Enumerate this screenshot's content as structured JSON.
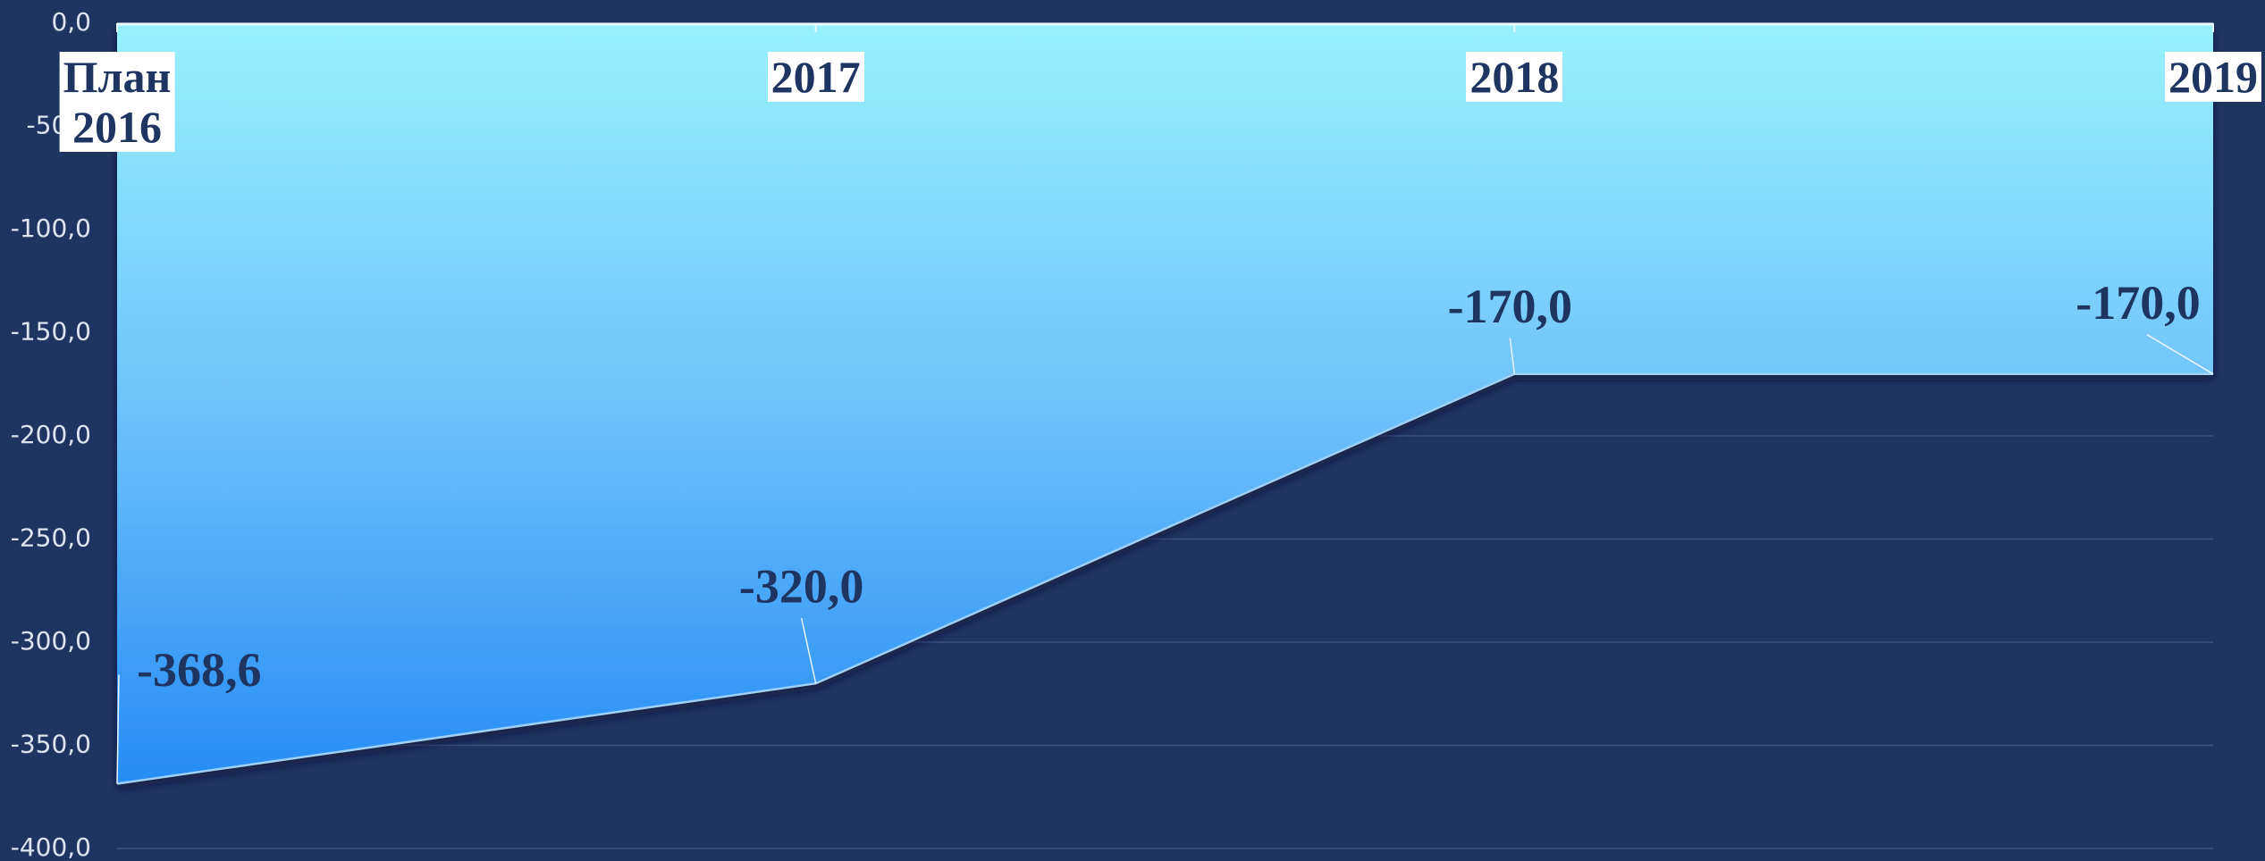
{
  "chart_data": {
    "type": "area",
    "categories": [
      "План 2016",
      "2017",
      "2018",
      "2019"
    ],
    "values": [
      -368.6,
      -320.0,
      -170.0,
      -170.0
    ],
    "value_labels": [
      "-368,6",
      "-320,0",
      "-170,0",
      "-170,0"
    ],
    "ylim": [
      -400,
      0
    ],
    "yticks": [
      {
        "value": 0,
        "label": "0,0"
      },
      {
        "value": -50,
        "label": "-50,0"
      },
      {
        "value": -100,
        "label": "-100,0"
      },
      {
        "value": -150,
        "label": "-150,0"
      },
      {
        "value": -200,
        "label": "-200,0"
      },
      {
        "value": -250,
        "label": "-250,0"
      },
      {
        "value": -300,
        "label": "-300,0"
      },
      {
        "value": -350,
        "label": "-350,0"
      },
      {
        "value": -400,
        "label": "-400,0"
      }
    ],
    "grid": true
  }
}
